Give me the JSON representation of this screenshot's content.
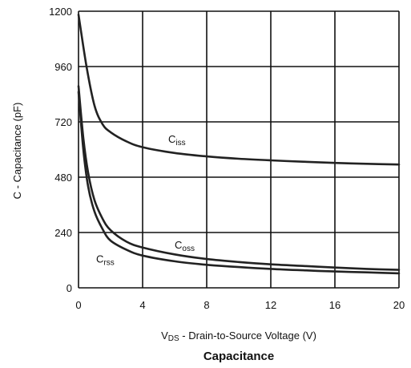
{
  "chart_data": {
    "type": "line",
    "title": "Capacitance",
    "ylabel": "C - Capacitance (pF)",
    "xlabel": {
      "prefix": "V",
      "subscript": "DS",
      "suffix": " - Drain-to-Source Voltage (V)"
    },
    "xlim": [
      0,
      20
    ],
    "ylim": [
      0,
      1200
    ],
    "x_ticks": [
      0,
      4,
      8,
      12,
      16,
      20
    ],
    "y_ticks": [
      0,
      240,
      480,
      720,
      960,
      1200
    ],
    "grid": true,
    "series": [
      {
        "name": "Ciss",
        "label_main": "C",
        "label_sub": "iss",
        "points": [
          [
            0,
            1185
          ],
          [
            0.5,
            960
          ],
          [
            1,
            790
          ],
          [
            1.5,
            710
          ],
          [
            2,
            675
          ],
          [
            3,
            635
          ],
          [
            4,
            610
          ],
          [
            6,
            585
          ],
          [
            8,
            570
          ],
          [
            10,
            560
          ],
          [
            12,
            553
          ],
          [
            14,
            547
          ],
          [
            16,
            542
          ],
          [
            18,
            538
          ],
          [
            20,
            535
          ]
        ]
      },
      {
        "name": "Coss",
        "label_main": "C",
        "label_sub": "oss",
        "points": [
          [
            0,
            875
          ],
          [
            0.3,
            650
          ],
          [
            0.6,
            500
          ],
          [
            1,
            380
          ],
          [
            1.5,
            300
          ],
          [
            2,
            250
          ],
          [
            3,
            200
          ],
          [
            4,
            175
          ],
          [
            6,
            145
          ],
          [
            8,
            125
          ],
          [
            10,
            112
          ],
          [
            12,
            102
          ],
          [
            14,
            95
          ],
          [
            16,
            88
          ],
          [
            18,
            82
          ],
          [
            20,
            78
          ]
        ]
      },
      {
        "name": "Crss",
        "label_main": "C",
        "label_sub": "rss",
        "points": [
          [
            0,
            850
          ],
          [
            0.3,
            600
          ],
          [
            0.6,
            440
          ],
          [
            1,
            330
          ],
          [
            1.5,
            255
          ],
          [
            2,
            205
          ],
          [
            3,
            165
          ],
          [
            4,
            140
          ],
          [
            6,
            115
          ],
          [
            8,
            100
          ],
          [
            10,
            90
          ],
          [
            12,
            82
          ],
          [
            14,
            76
          ],
          [
            16,
            71
          ],
          [
            18,
            67
          ],
          [
            20,
            63
          ]
        ]
      }
    ]
  }
}
